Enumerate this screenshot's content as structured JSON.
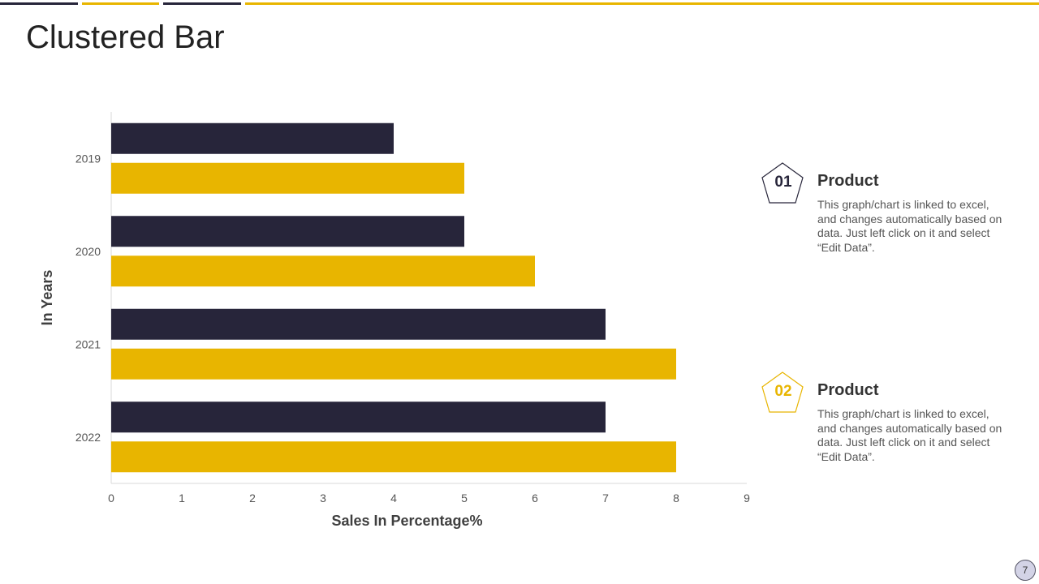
{
  "page": {
    "title": "Clustered Bar",
    "page_number": "7"
  },
  "colors": {
    "dark": "#27253a",
    "accent": "#e8b500"
  },
  "chart_data": {
    "type": "bar",
    "orientation": "horizontal",
    "categories": [
      "2019",
      "2020",
      "2021",
      "2022"
    ],
    "series": [
      {
        "name": "Product 01",
        "color": "#27253a",
        "values": [
          4,
          5,
          7,
          7
        ]
      },
      {
        "name": "Product 02",
        "color": "#e8b500",
        "values": [
          5,
          6,
          8,
          8
        ]
      }
    ],
    "title": "",
    "xlabel": "Sales In Percentage%",
    "ylabel": "In Years",
    "xlim": [
      0,
      9
    ],
    "xticks": [
      "0",
      "1",
      "2",
      "3",
      "4",
      "5",
      "6",
      "7",
      "8",
      "9"
    ],
    "grid": false,
    "legend": "right"
  },
  "legend": [
    {
      "number": "01",
      "title": "Product",
      "description": "This graph/chart is linked to excel, and changes automatically based on data. Just left click on it and select “Edit Data”.",
      "icon": "pentagon-icon"
    },
    {
      "number": "02",
      "title": "Product",
      "description": "This graph/chart is linked to excel, and changes automatically based on data. Just left click on it and select “Edit Data”.",
      "icon": "pentagon-icon"
    }
  ]
}
